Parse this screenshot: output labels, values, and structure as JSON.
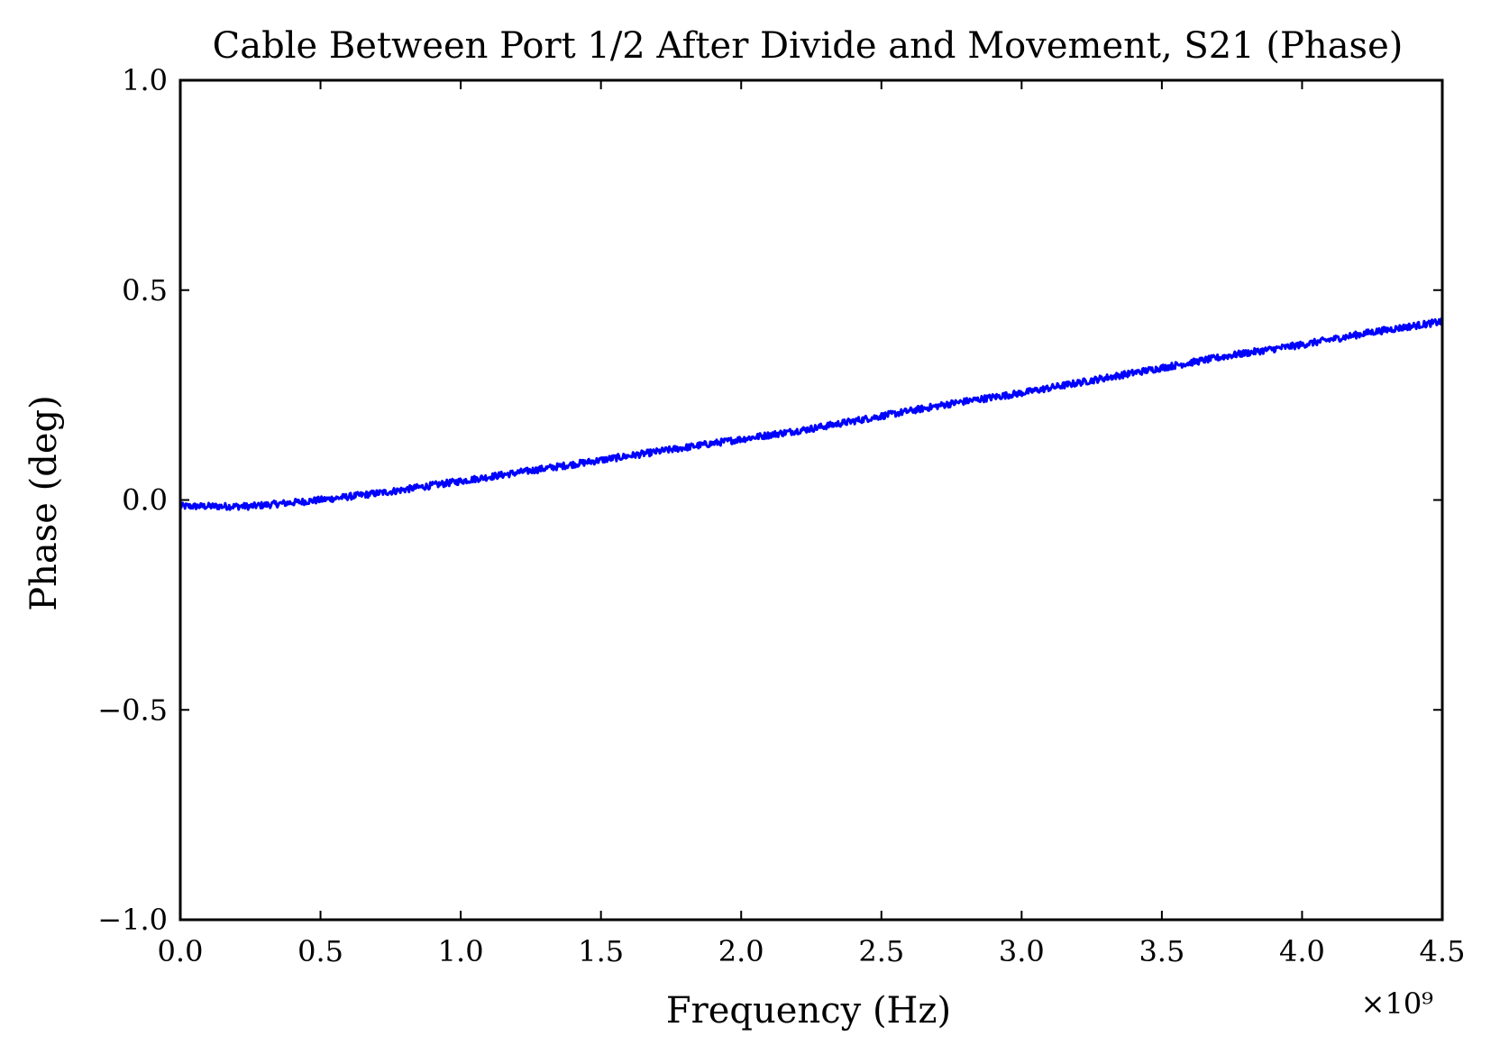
{
  "chart_data": {
    "type": "line",
    "title": "Cable Between Port 1/2 After Divide and Movement, S21 (Phase)",
    "xlabel": "Frequency (Hz)",
    "ylabel": "Phase (deg)",
    "x_offset_label": "×10⁹",
    "xlim": [
      0.0,
      4500000000.0
    ],
    "ylim": [
      -1.0,
      1.0
    ],
    "x_ticks": [
      0.0,
      500000000.0,
      1000000000.0,
      1500000000.0,
      2000000000.0,
      2500000000.0,
      3000000000.0,
      3500000000.0,
      4000000000.0,
      4500000000.0
    ],
    "x_tick_labels": [
      "0.0",
      "0.5",
      "1.0",
      "1.5",
      "2.0",
      "2.5",
      "3.0",
      "3.5",
      "4.0",
      "4.5"
    ],
    "y_ticks": [
      -1.0,
      -0.5,
      0.0,
      0.5,
      1.0
    ],
    "y_tick_labels": [
      "−1.0",
      "−0.5",
      "0.0",
      "0.5",
      "1.0"
    ],
    "grid": false,
    "series": [
      {
        "color": "#0000ff",
        "noise_amplitude": 0.008,
        "x": [
          0.0,
          250000000.0,
          500000000.0,
          750000000.0,
          1000000000.0,
          1250000000.0,
          1500000000.0,
          1750000000.0,
          2000000000.0,
          2250000000.0,
          2500000000.0,
          2750000000.0,
          3000000000.0,
          3250000000.0,
          3500000000.0,
          3750000000.0,
          4000000000.0,
          4250000000.0,
          4500000000.0
        ],
        "y": [
          -0.015,
          -0.015,
          0.0,
          0.02,
          0.045,
          0.07,
          0.095,
          0.12,
          0.145,
          0.17,
          0.2,
          0.23,
          0.255,
          0.285,
          0.315,
          0.345,
          0.37,
          0.4,
          0.425
        ]
      }
    ]
  }
}
